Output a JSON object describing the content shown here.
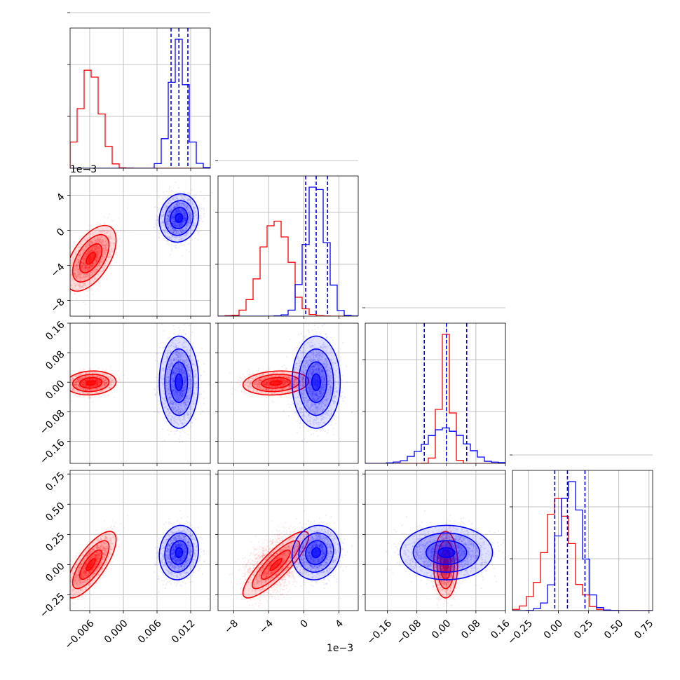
{
  "chart_data": {
    "type": "corner",
    "offset_label": "1e−3",
    "colors": {
      "red": "#ff0000",
      "blue": "#0000ff"
    },
    "grid": true,
    "parameters": [
      {
        "ticks": [
          -0.006,
          0.0,
          0.006,
          0.012
        ],
        "tick_labels": [
          "−0.006",
          "0.000",
          "0.006",
          "0.012"
        ],
        "range": [
          -0.0095,
          0.0155
        ]
      },
      {
        "ticks": [
          -8,
          -4,
          0,
          4
        ],
        "tick_labels": [
          "−8",
          "−4",
          "0",
          "4"
        ],
        "range": [
          -9.8,
          6.2
        ]
      },
      {
        "ticks": [
          -0.16,
          -0.08,
          0.0,
          0.08,
          0.16
        ],
        "tick_labels": [
          "−0.16",
          "−0.08",
          "0.00",
          "0.08",
          "0.16"
        ],
        "range": [
          -0.22,
          0.16
        ]
      },
      {
        "ticks": [
          -0.25,
          0.0,
          0.25,
          0.5,
          0.75
        ],
        "tick_labels": [
          "−0.25",
          "0.00",
          "0.25",
          "0.50",
          "0.75"
        ],
        "range": [
          -0.38,
          0.78
        ]
      }
    ],
    "y_ticks": [
      {
        "ticks": [
          -8,
          -4,
          0,
          4
        ],
        "tick_labels": [
          "−8",
          "−4",
          "0",
          "4"
        ]
      },
      {
        "ticks": [
          -0.16,
          -0.08,
          0.0,
          0.08,
          0.16
        ],
        "tick_labels": [
          "−0.16",
          "−0.08",
          "0.00",
          "0.08",
          "0.16"
        ]
      },
      {
        "ticks": [
          -0.25,
          0.0,
          0.25,
          0.5,
          0.75
        ],
        "tick_labels": [
          "−0.25",
          "0.00",
          "0.25",
          "0.50",
          "0.75"
        ]
      }
    ],
    "series": [
      {
        "color": "red",
        "mean": [
          -0.0058,
          -3.2,
          -0.002,
          0.0
        ],
        "std": [
          0.0018,
          1.5,
          0.013,
          0.11
        ],
        "corr": [
          [
            1,
            0.55,
            0.1,
            0.75
          ],
          [
            0.55,
            1,
            0.15,
            0.85
          ],
          [
            0.1,
            0.15,
            1,
            0.0
          ],
          [
            0.75,
            0.85,
            0.0,
            1
          ]
        ]
      },
      {
        "color": "blue",
        "mean": [
          0.0099,
          1.4,
          0.0,
          0.1
        ],
        "std": [
          0.0014,
          1.1,
          0.05,
          0.09
        ],
        "corr": [
          [
            1,
            0.1,
            0.0,
            0.1
          ],
          [
            0.1,
            1,
            0.0,
            0.1
          ],
          [
            0.0,
            0.0,
            1,
            0.0
          ],
          [
            0.1,
            0.1,
            0.0,
            1
          ]
        ],
        "quantiles": [
          [
            0.0085,
            0.0099,
            0.0115
          ],
          [
            0.2,
            1.4,
            2.7
          ],
          [
            -0.06,
            0.0,
            0.055
          ],
          [
            -0.03,
            0.075,
            0.22
          ]
        ]
      }
    ]
  }
}
